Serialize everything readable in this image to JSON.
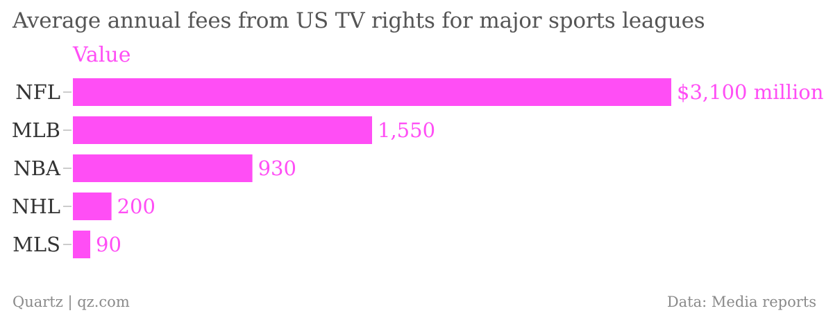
{
  "chart_data": {
    "type": "bar",
    "orientation": "horizontal",
    "title": "Average annual fees from US TV rights for major sports leagues",
    "series_label": "Value",
    "categories": [
      "NFL",
      "MLB",
      "NBA",
      "NHL",
      "MLS"
    ],
    "series": [
      {
        "name": "Value",
        "values": [
          3100,
          1550,
          930,
          200,
          90
        ]
      }
    ],
    "value_labels": [
      "$3,100 million",
      "1,550",
      "930",
      "200",
      "90"
    ],
    "xlim": [
      0,
      3100
    ],
    "grid": false,
    "color": "#ff4ef5"
  },
  "footer": {
    "source_left": "Quartz | qz.com",
    "source_right": "Data: Media reports"
  }
}
